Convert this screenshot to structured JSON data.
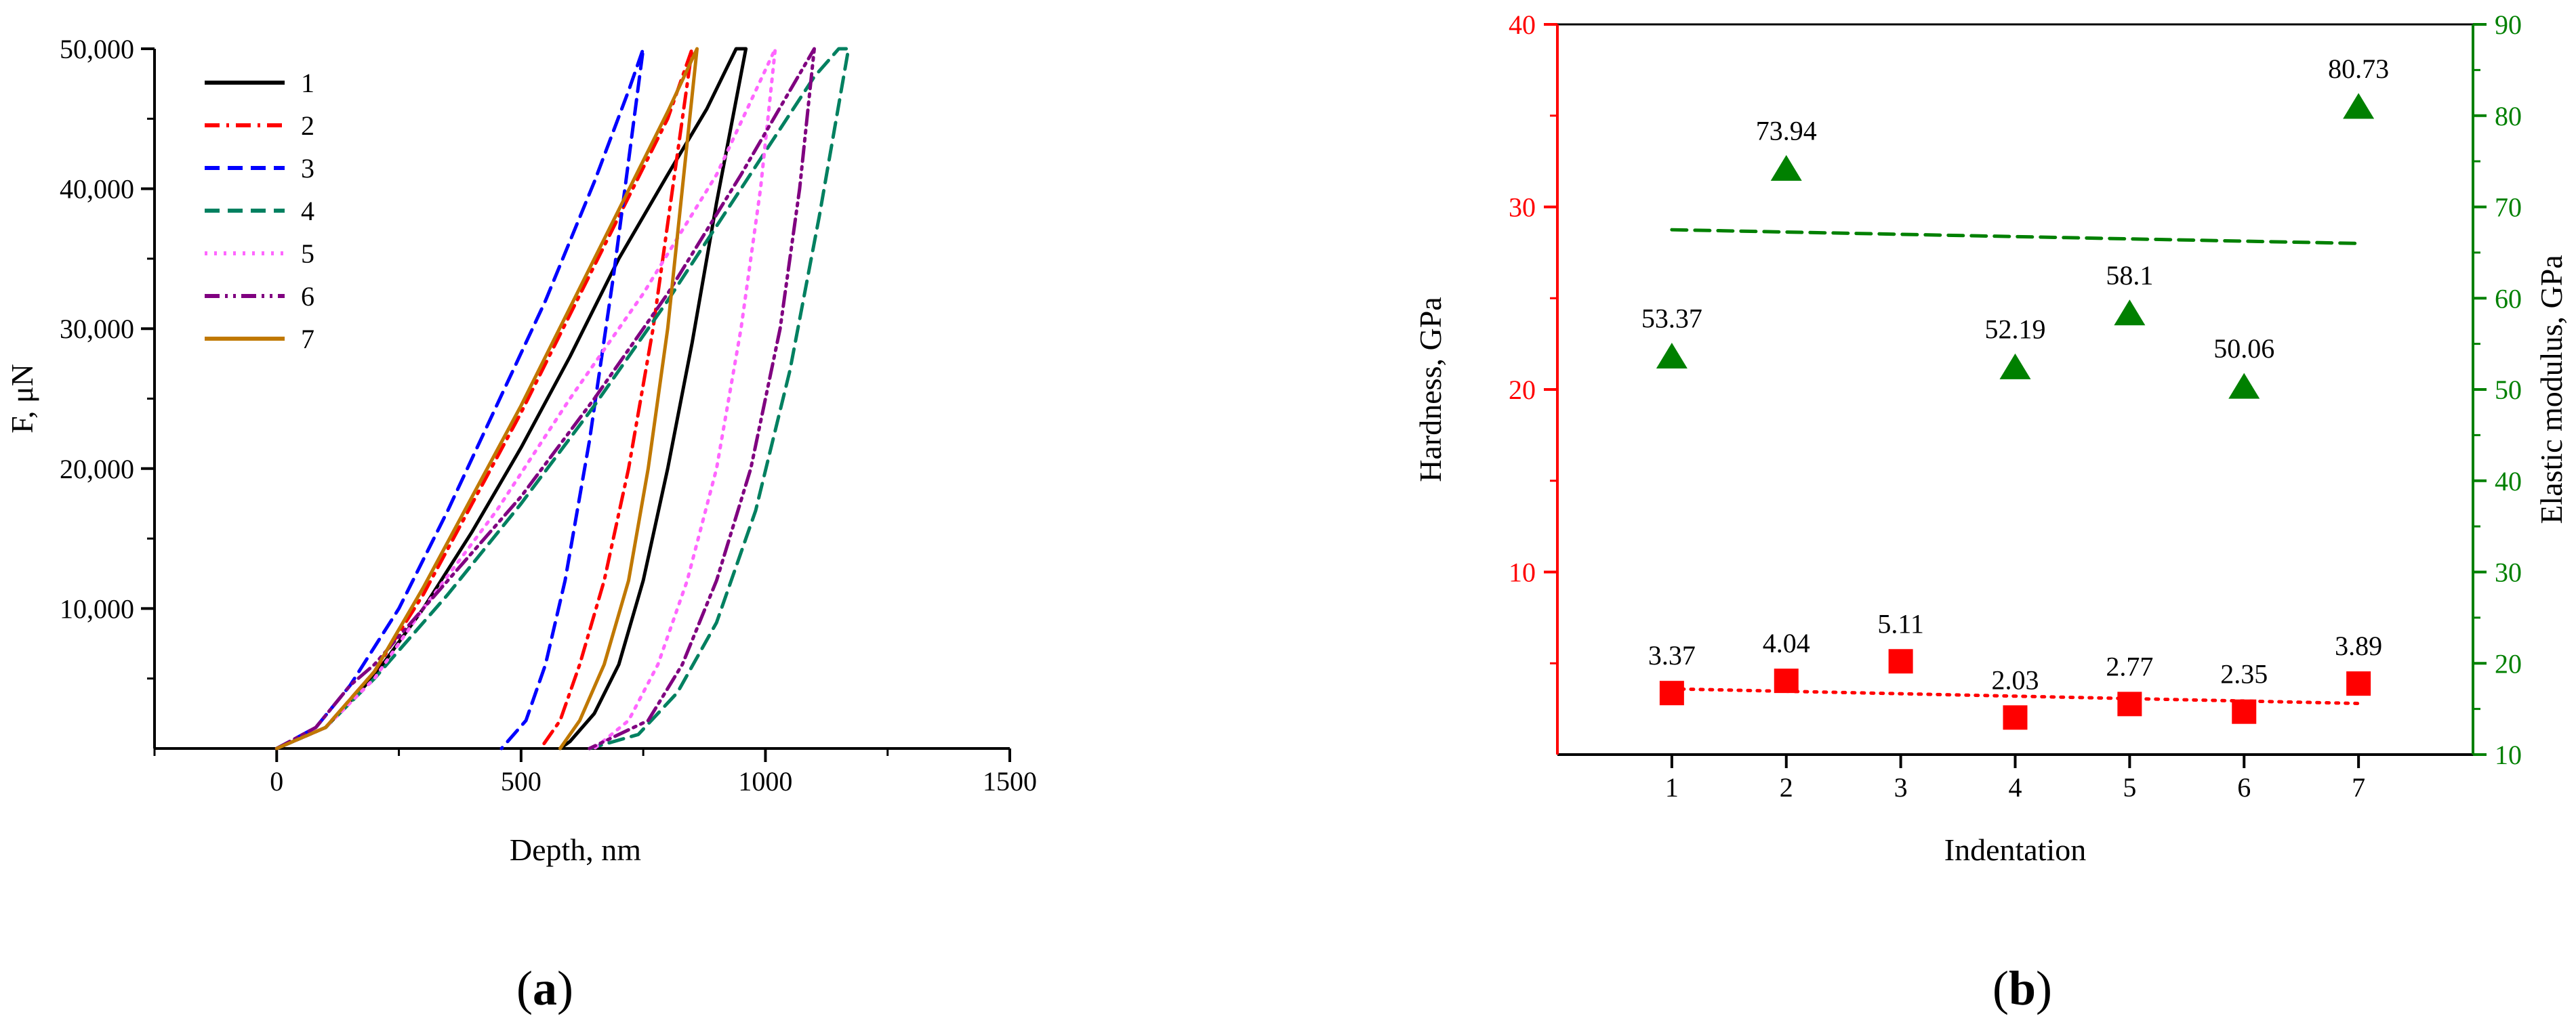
{
  "chart_data": [
    {
      "type": "line",
      "panel": "(a)",
      "panel_letter": "a",
      "xlabel": "Depth, nm",
      "ylabel": "F, μN",
      "xlim": [
        -250,
        1500
      ],
      "ylim": [
        0,
        50000
      ],
      "xticks": [
        0,
        500,
        1000,
        1500
      ],
      "yticks": [
        10000,
        20000,
        30000,
        40000,
        50000
      ],
      "ytick_labels": [
        "10,000",
        "20,000",
        "30,000",
        "40,000",
        "50,000"
      ],
      "legend_position": "top-left",
      "grid": false,
      "series": [
        {
          "name": "1",
          "color": "#000000",
          "dash": "solid",
          "loading": [
            [
              0,
              0
            ],
            [
              100,
              1500
            ],
            [
              200,
              5200
            ],
            [
              300,
              10000
            ],
            [
              400,
              15500
            ],
            [
              500,
              21500
            ],
            [
              600,
              28000
            ],
            [
              700,
              35000
            ],
            [
              800,
              41000
            ],
            [
              880,
              45700
            ],
            [
              940,
              50000
            ]
          ],
          "unloading": [
            [
              960,
              50000
            ],
            [
              900,
              39000
            ],
            [
              850,
              29000
            ],
            [
              800,
              20000
            ],
            [
              750,
              12000
            ],
            [
              700,
              6000
            ],
            [
              650,
              2500
            ],
            [
              600,
              500
            ],
            [
              580,
              0
            ]
          ]
        },
        {
          "name": "2",
          "color": "#ff0000",
          "dash": "dashdot",
          "loading": [
            [
              0,
              0
            ],
            [
              100,
              1500
            ],
            [
              200,
              5500
            ],
            [
              300,
              11000
            ],
            [
              400,
              17500
            ],
            [
              500,
              24000
            ],
            [
              600,
              31000
            ],
            [
              700,
              38000
            ],
            [
              800,
              45000
            ],
            [
              850,
              50000
            ]
          ],
          "unloading": [
            [
              850,
              50000
            ],
            [
              810,
              40000
            ],
            [
              770,
              30000
            ],
            [
              720,
              20000
            ],
            [
              670,
              12000
            ],
            [
              620,
              6000
            ],
            [
              580,
              2000
            ],
            [
              540,
              0
            ]
          ]
        },
        {
          "name": "3",
          "color": "#0000ff",
          "dash": "dash",
          "loading": [
            [
              0,
              0
            ],
            [
              80,
              1500
            ],
            [
              150,
              4500
            ],
            [
              250,
              10000
            ],
            [
              350,
              17000
            ],
            [
              450,
              24500
            ],
            [
              550,
              32000
            ],
            [
              650,
              40500
            ],
            [
              720,
              47000
            ],
            [
              750,
              50000
            ]
          ],
          "unloading": [
            [
              750,
              50000
            ],
            [
              720,
              42000
            ],
            [
              690,
              34000
            ],
            [
              640,
              22000
            ],
            [
              590,
              12000
            ],
            [
              550,
              6000
            ],
            [
              510,
              2000
            ],
            [
              460,
              0
            ]
          ]
        },
        {
          "name": "4",
          "color": "#008060",
          "dash": "dash",
          "loading": [
            [
              0,
              0
            ],
            [
              100,
              1500
            ],
            [
              200,
              5000
            ],
            [
              350,
              11000
            ],
            [
              500,
              17500
            ],
            [
              650,
              24500
            ],
            [
              800,
              32000
            ],
            [
              950,
              40000
            ],
            [
              1100,
              48000
            ],
            [
              1150,
              50000
            ]
          ],
          "unloading": [
            [
              1170,
              50000
            ],
            [
              1110,
              38000
            ],
            [
              1050,
              27000
            ],
            [
              980,
              17000
            ],
            [
              900,
              9000
            ],
            [
              820,
              4000
            ],
            [
              740,
              1000
            ],
            [
              640,
              0
            ]
          ]
        },
        {
          "name": "5",
          "color": "#ff66ff",
          "dash": "dot",
          "loading": [
            [
              0,
              0
            ],
            [
              100,
              1500
            ],
            [
              200,
              5000
            ],
            [
              300,
              10000
            ],
            [
              450,
              17000
            ],
            [
              600,
              25000
            ],
            [
              750,
              32500
            ],
            [
              900,
              41000
            ],
            [
              1020,
              50000
            ]
          ],
          "unloading": [
            [
              1020,
              50000
            ],
            [
              990,
              40000
            ],
            [
              950,
              30000
            ],
            [
              900,
              20000
            ],
            [
              840,
              12000
            ],
            [
              780,
              6000
            ],
            [
              720,
              2000
            ],
            [
              650,
              0
            ]
          ]
        },
        {
          "name": "6",
          "color": "#800080",
          "dash": "dashdotdot",
          "loading": [
            [
              0,
              0
            ],
            [
              80,
              1500
            ],
            [
              150,
              4500
            ],
            [
              200,
              6000
            ],
            [
              350,
              12000
            ],
            [
              500,
              18000
            ],
            [
              650,
              25000
            ],
            [
              800,
              32500
            ],
            [
              950,
              41000
            ],
            [
              1100,
              50000
            ]
          ],
          "unloading": [
            [
              1100,
              50000
            ],
            [
              1070,
              40000
            ],
            [
              1030,
              30000
            ],
            [
              970,
              20000
            ],
            [
              900,
              12000
            ],
            [
              830,
              6000
            ],
            [
              760,
              2000
            ],
            [
              640,
              0
            ]
          ]
        },
        {
          "name": "7",
          "color": "#c07800",
          "dash": "solid",
          "loading": [
            [
              0,
              0
            ],
            [
              100,
              1500
            ],
            [
              200,
              5500
            ],
            [
              300,
              11500
            ],
            [
              400,
              18000
            ],
            [
              500,
              24500
            ],
            [
              600,
              31500
            ],
            [
              700,
              38500
            ],
            [
              800,
              45500
            ],
            [
              860,
              50000
            ]
          ],
          "unloading": [
            [
              860,
              50000
            ],
            [
              830,
              40000
            ],
            [
              800,
              30000
            ],
            [
              760,
              20000
            ],
            [
              720,
              12000
            ],
            [
              670,
              6000
            ],
            [
              620,
              2000
            ],
            [
              580,
              0
            ]
          ]
        }
      ]
    },
    {
      "type": "scatter",
      "panel": "(b)",
      "panel_letter": "b",
      "xlabel": "Indentation",
      "ylabel_left": "Hardness, GPa",
      "ylabel_right": "Elastic modulus, GPa",
      "xlim": [
        0,
        8
      ],
      "xticks": [
        1,
        2,
        3,
        4,
        5,
        6,
        7
      ],
      "ylim_left": [
        0,
        40
      ],
      "yticks_left": [
        10,
        20,
        30,
        40
      ],
      "ylim_right": [
        10,
        90
      ],
      "yticks_right": [
        10,
        20,
        30,
        40,
        50,
        60,
        70,
        80,
        90
      ],
      "left_axis_color": "#ff0000",
      "right_axis_color": "#008000",
      "grid": false,
      "series": [
        {
          "axis": "right",
          "marker": "triangle",
          "color": "#008000",
          "x": [
            1,
            2,
            3,
            4,
            5,
            6,
            7
          ],
          "y": [
            53.37,
            73.94,
            null,
            52.19,
            58.1,
            50.06,
            80.73
          ],
          "labels": [
            "53.37",
            "73.94",
            "",
            "52.19",
            "58.1",
            "50.06",
            "80.73"
          ],
          "trend": {
            "x": [
              1,
              7
            ],
            "y": [
              67.5,
              66.0
            ],
            "dash": "dash"
          }
        },
        {
          "axis": "left",
          "marker": "square",
          "color": "#ff0000",
          "x": [
            1,
            2,
            3,
            4,
            5,
            6,
            7
          ],
          "y": [
            3.37,
            4.04,
            5.11,
            2.03,
            2.77,
            2.35,
            3.89
          ],
          "labels": [
            "3.37",
            "4.04",
            "5.11",
            "2.03",
            "2.77",
            "2.35",
            "3.89"
          ],
          "trend": {
            "x": [
              1,
              7
            ],
            "y": [
              3.6,
              2.8
            ],
            "dash": "dot"
          }
        }
      ]
    }
  ]
}
